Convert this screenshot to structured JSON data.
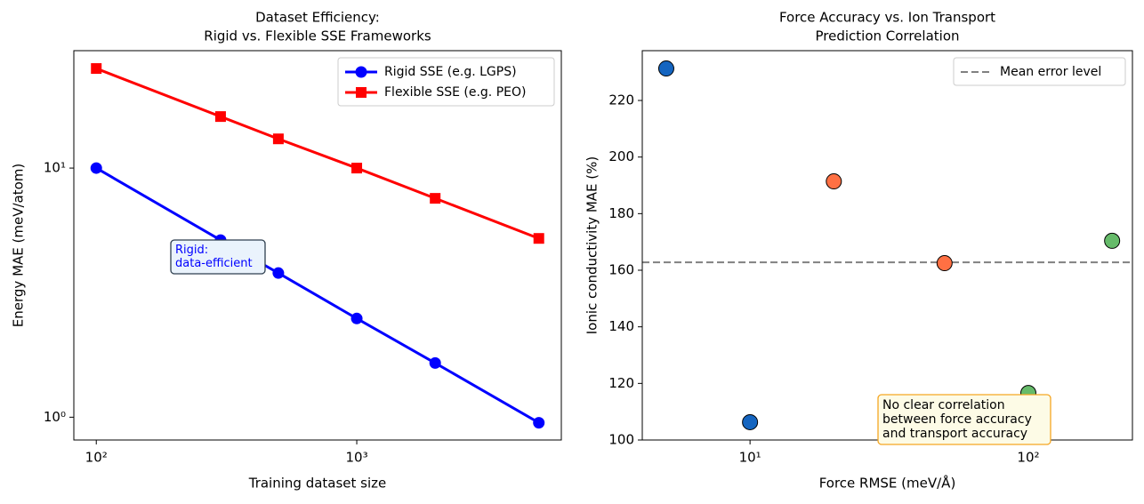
{
  "chart_data": [
    {
      "type": "line",
      "title": [
        "Dataset Efficiency:",
        "Rigid vs. Flexible SSE Frameworks"
      ],
      "xlabel": "Training dataset size",
      "ylabel": "Energy MAE (meV/atom)",
      "xscale": "log",
      "yscale": "log",
      "xlim": [
        82,
        6100
      ],
      "ylim": [
        0.81,
        29.6
      ],
      "xticks": [
        {
          "value": 100,
          "label": "10²"
        },
        {
          "value": 1000,
          "label": "10³"
        }
      ],
      "yticks": [
        {
          "value": 1,
          "label": "10⁰"
        },
        {
          "value": 10,
          "label": "10¹"
        }
      ],
      "x": [
        100,
        300,
        500,
        1000,
        2000,
        5000
      ],
      "series": [
        {
          "name": "Rigid SSE (e.g. LGPS)",
          "color": "#0000ff",
          "marker": "circle",
          "values": [
            10,
            5.14,
            3.79,
            2.49,
            1.65,
            0.95
          ]
        },
        {
          "name": "Flexible SSE (e.g. PEO)",
          "color": "#ff0000",
          "marker": "square",
          "values": [
            25.1,
            16.1,
            13.1,
            10,
            7.56,
            5.22
          ]
        }
      ],
      "legend": "upper right",
      "annotation": [
        "Rigid:",
        "data-efficient"
      ]
    },
    {
      "type": "scatter",
      "title": [
        "Force Accuracy vs. Ion Transport",
        "Prediction Correlation"
      ],
      "xlabel": "Force RMSE (meV/Å)",
      "ylabel": "Ionic conductivity MAE (%)",
      "xscale": "log",
      "yscale": "linear",
      "xlim": [
        4.1,
        236.6
      ],
      "ylim": [
        100,
        237.6
      ],
      "xticks": [
        {
          "value": 10,
          "label": "10¹"
        },
        {
          "value": 100,
          "label": "10²"
        }
      ],
      "yticks": [
        100,
        120,
        140,
        160,
        180,
        200,
        220
      ],
      "x": [
        5,
        10,
        20,
        50,
        100,
        200
      ],
      "values": [
        231.3,
        106.3,
        191.4,
        162.5,
        116.6,
        170.4
      ],
      "colors": [
        "#1565c0",
        "#1565c0",
        "#ff7043",
        "#ff7043",
        "#66bb6a",
        "#66bb6a"
      ],
      "hline": {
        "name": "Mean error level",
        "value": 162.8,
        "color": "#808080"
      },
      "legend": "upper right",
      "annotation": [
        "No clear correlation",
        "between force accuracy",
        "and transport accuracy"
      ]
    }
  ]
}
